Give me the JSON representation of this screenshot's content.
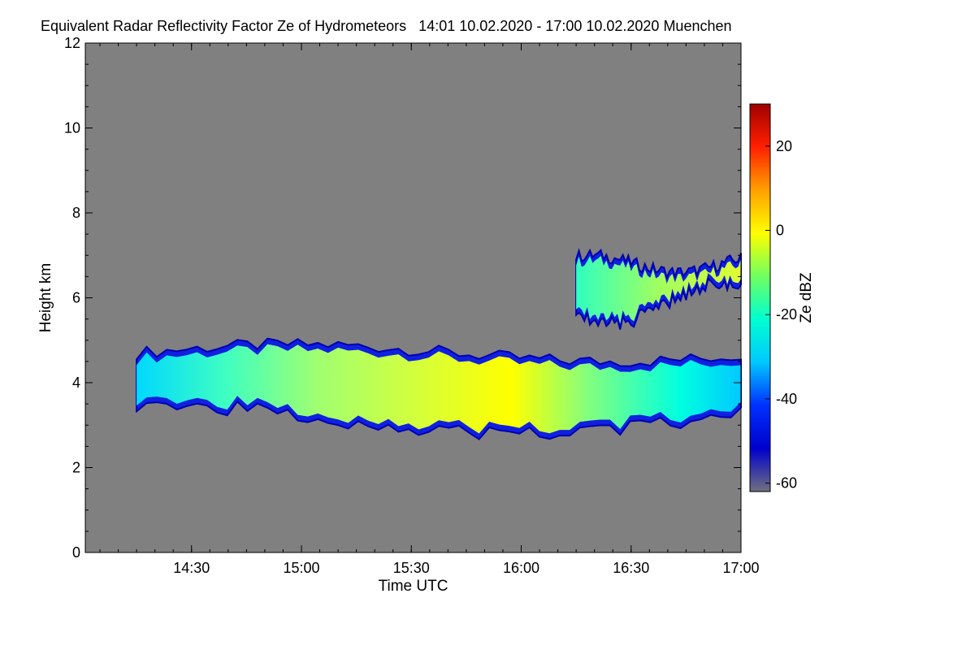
{
  "chart_data": {
    "type": "heatmap",
    "title": "Equivalent Radar Reflectivity Factor Ze of Hydrometeors   14:01 10.02.2020 - 17:00 10.02.2020 Muenchen",
    "xlabel": "Time UTC",
    "ylabel": "Height km",
    "x_range": [
      "14:01",
      "17:00"
    ],
    "x_ticks": [
      "14:30",
      "15:00",
      "15:30",
      "16:00",
      "16:30",
      "17:00"
    ],
    "y_range": [
      0,
      12
    ],
    "y_ticks": [
      "0",
      "2",
      "4",
      "6",
      "8",
      "10",
      "12"
    ],
    "colorbar": {
      "label": "Ze dBZ",
      "range": [
        -62,
        30
      ],
      "ticks": [
        "-60",
        "-40",
        "-20",
        "0",
        "20"
      ],
      "colors": [
        "#707080",
        "#0000cc",
        "#0030ff",
        "#00c8ff",
        "#00ffd0",
        "#70ff60",
        "#ffff00",
        "#ffa000",
        "#ff2000",
        "#a00000"
      ]
    },
    "background_color": "#808080",
    "layers": [
      {
        "name": "lower",
        "t_start": "14:15",
        "t_end": "17:00",
        "base_km": [
          2.8,
          3.5
        ],
        "top_km": [
          4.5,
          4.9
        ],
        "peak_dbz": -5
      },
      {
        "name": "upper",
        "t_start": "16:15",
        "t_end": "17:00",
        "base_km": [
          5.4,
          6.3
        ],
        "top_km": [
          6.6,
          7.0
        ],
        "peak_dbz": -10
      }
    ]
  }
}
